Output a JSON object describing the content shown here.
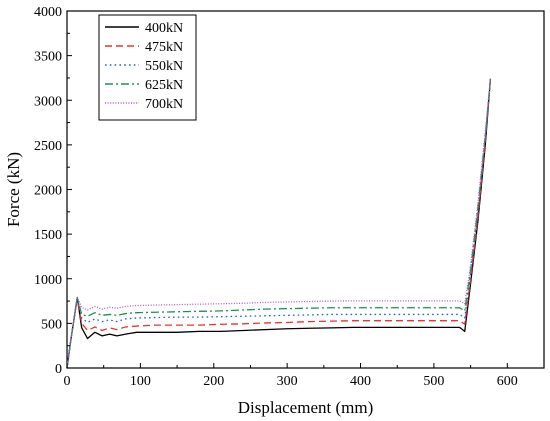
{
  "chart_data": {
    "type": "line",
    "title": "",
    "xlabel": "Displacement (mm)",
    "ylabel": "Force (kN)",
    "xlim": [
      0,
      650
    ],
    "ylim": [
      0,
      4000
    ],
    "xticks": [
      0,
      100,
      200,
      300,
      400,
      500,
      600
    ],
    "yticks": [
      0,
      500,
      1000,
      1500,
      2000,
      2500,
      3000,
      3500,
      4000
    ],
    "grid": false,
    "legend_position": "top-left",
    "series": [
      {
        "name": "400kN",
        "color": "#000000",
        "dash": "solid",
        "points": [
          [
            0,
            0
          ],
          [
            5,
            300
          ],
          [
            14,
            790
          ],
          [
            20,
            450
          ],
          [
            28,
            330
          ],
          [
            38,
            400
          ],
          [
            48,
            360
          ],
          [
            58,
            380
          ],
          [
            68,
            360
          ],
          [
            80,
            380
          ],
          [
            95,
            400
          ],
          [
            120,
            400
          ],
          [
            150,
            400
          ],
          [
            180,
            410
          ],
          [
            210,
            410
          ],
          [
            240,
            420
          ],
          [
            270,
            430
          ],
          [
            300,
            440
          ],
          [
            330,
            445
          ],
          [
            360,
            450
          ],
          [
            390,
            455
          ],
          [
            420,
            455
          ],
          [
            450,
            455
          ],
          [
            480,
            455
          ],
          [
            510,
            455
          ],
          [
            535,
            455
          ],
          [
            542,
            410
          ],
          [
            550,
            950
          ],
          [
            560,
            1650
          ],
          [
            570,
            2500
          ],
          [
            577,
            3240
          ]
        ]
      },
      {
        "name": "475kN",
        "color": "#e8332a",
        "dash": "dashed",
        "points": [
          [
            0,
            0
          ],
          [
            5,
            300
          ],
          [
            14,
            790
          ],
          [
            20,
            500
          ],
          [
            28,
            420
          ],
          [
            38,
            460
          ],
          [
            48,
            420
          ],
          [
            58,
            450
          ],
          [
            68,
            430
          ],
          [
            80,
            460
          ],
          [
            95,
            470
          ],
          [
            120,
            480
          ],
          [
            150,
            480
          ],
          [
            180,
            480
          ],
          [
            210,
            490
          ],
          [
            240,
            495
          ],
          [
            270,
            505
          ],
          [
            300,
            510
          ],
          [
            330,
            520
          ],
          [
            360,
            525
          ],
          [
            390,
            530
          ],
          [
            420,
            530
          ],
          [
            450,
            530
          ],
          [
            480,
            530
          ],
          [
            510,
            530
          ],
          [
            535,
            530
          ],
          [
            542,
            490
          ],
          [
            550,
            1000
          ],
          [
            560,
            1700
          ],
          [
            570,
            2550
          ],
          [
            577,
            3240
          ]
        ]
      },
      {
        "name": "550kN",
        "color": "#1f5fd6",
        "dash": "dotted",
        "points": [
          [
            0,
            0
          ],
          [
            5,
            300
          ],
          [
            14,
            790
          ],
          [
            20,
            560
          ],
          [
            28,
            510
          ],
          [
            38,
            550
          ],
          [
            48,
            520
          ],
          [
            58,
            540
          ],
          [
            68,
            520
          ],
          [
            80,
            550
          ],
          [
            95,
            560
          ],
          [
            120,
            565
          ],
          [
            150,
            570
          ],
          [
            180,
            570
          ],
          [
            210,
            575
          ],
          [
            240,
            580
          ],
          [
            270,
            585
          ],
          [
            300,
            590
          ],
          [
            330,
            595
          ],
          [
            360,
            600
          ],
          [
            390,
            600
          ],
          [
            420,
            600
          ],
          [
            450,
            600
          ],
          [
            480,
            600
          ],
          [
            510,
            600
          ],
          [
            535,
            600
          ],
          [
            542,
            560
          ],
          [
            550,
            1050
          ],
          [
            560,
            1750
          ],
          [
            570,
            2580
          ],
          [
            577,
            3240
          ]
        ]
      },
      {
        "name": "625kN",
        "color": "#1f8f5a",
        "dash": "dashdot",
        "points": [
          [
            0,
            0
          ],
          [
            5,
            300
          ],
          [
            14,
            790
          ],
          [
            20,
            600
          ],
          [
            28,
            580
          ],
          [
            38,
            620
          ],
          [
            48,
            590
          ],
          [
            58,
            600
          ],
          [
            68,
            590
          ],
          [
            80,
            610
          ],
          [
            95,
            620
          ],
          [
            120,
            625
          ],
          [
            150,
            630
          ],
          [
            180,
            635
          ],
          [
            210,
            640
          ],
          [
            240,
            650
          ],
          [
            270,
            660
          ],
          [
            300,
            665
          ],
          [
            330,
            670
          ],
          [
            360,
            675
          ],
          [
            390,
            675
          ],
          [
            420,
            675
          ],
          [
            450,
            675
          ],
          [
            480,
            675
          ],
          [
            510,
            675
          ],
          [
            535,
            675
          ],
          [
            542,
            640
          ],
          [
            550,
            1100
          ],
          [
            560,
            1800
          ],
          [
            570,
            2600
          ],
          [
            577,
            3240
          ]
        ]
      },
      {
        "name": "700kN",
        "color": "#b35ab8",
        "dash": "finedot",
        "points": [
          [
            0,
            0
          ],
          [
            5,
            300
          ],
          [
            14,
            790
          ],
          [
            20,
            680
          ],
          [
            28,
            650
          ],
          [
            38,
            690
          ],
          [
            48,
            660
          ],
          [
            58,
            680
          ],
          [
            68,
            670
          ],
          [
            80,
            690
          ],
          [
            95,
            700
          ],
          [
            120,
            705
          ],
          [
            150,
            710
          ],
          [
            180,
            715
          ],
          [
            210,
            720
          ],
          [
            240,
            725
          ],
          [
            270,
            735
          ],
          [
            300,
            740
          ],
          [
            330,
            745
          ],
          [
            360,
            750
          ],
          [
            390,
            752
          ],
          [
            420,
            752
          ],
          [
            450,
            752
          ],
          [
            480,
            752
          ],
          [
            510,
            752
          ],
          [
            535,
            752
          ],
          [
            542,
            720
          ],
          [
            550,
            1150
          ],
          [
            560,
            1850
          ],
          [
            570,
            2650
          ],
          [
            577,
            3240
          ]
        ]
      }
    ]
  }
}
